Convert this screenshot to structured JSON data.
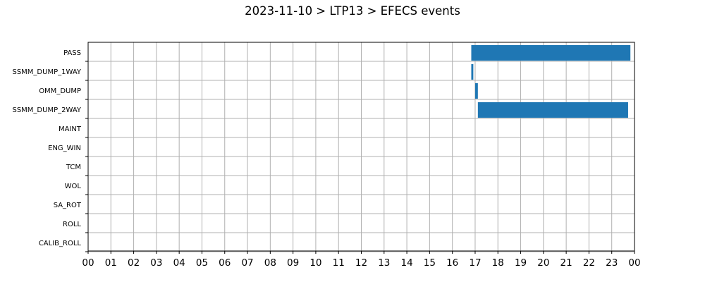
{
  "chart_data": {
    "type": "bar",
    "orientation": "horizontal",
    "title": "2023-11-10 > LTP13 > EFECS events",
    "xlabel": "",
    "ylabel": "",
    "xlim": [
      0,
      24
    ],
    "x_ticks": [
      "00",
      "01",
      "02",
      "03",
      "04",
      "05",
      "06",
      "07",
      "08",
      "09",
      "10",
      "11",
      "12",
      "13",
      "14",
      "15",
      "16",
      "17",
      "18",
      "19",
      "20",
      "21",
      "22",
      "23",
      "00"
    ],
    "categories": [
      "PASS",
      "SSMM_DUMP_1WAY",
      "OMM_DUMP",
      "SSMM_DUMP_2WAY",
      "MAINT",
      "ENG_WIN",
      "TCM",
      "WOL",
      "SA_ROT",
      "ROLL",
      "CALIB_ROLL"
    ],
    "events": [
      {
        "category": "PASS",
        "start": 16.83,
        "end": 23.82
      },
      {
        "category": "SSMM_DUMP_1WAY",
        "start": 16.83,
        "end": 16.92
      },
      {
        "category": "OMM_DUMP",
        "start": 17.0,
        "end": 17.12
      },
      {
        "category": "SSMM_DUMP_2WAY",
        "start": 17.12,
        "end": 23.72
      }
    ],
    "bar_color": "#1f77b4",
    "grid": true,
    "legend": "none"
  }
}
